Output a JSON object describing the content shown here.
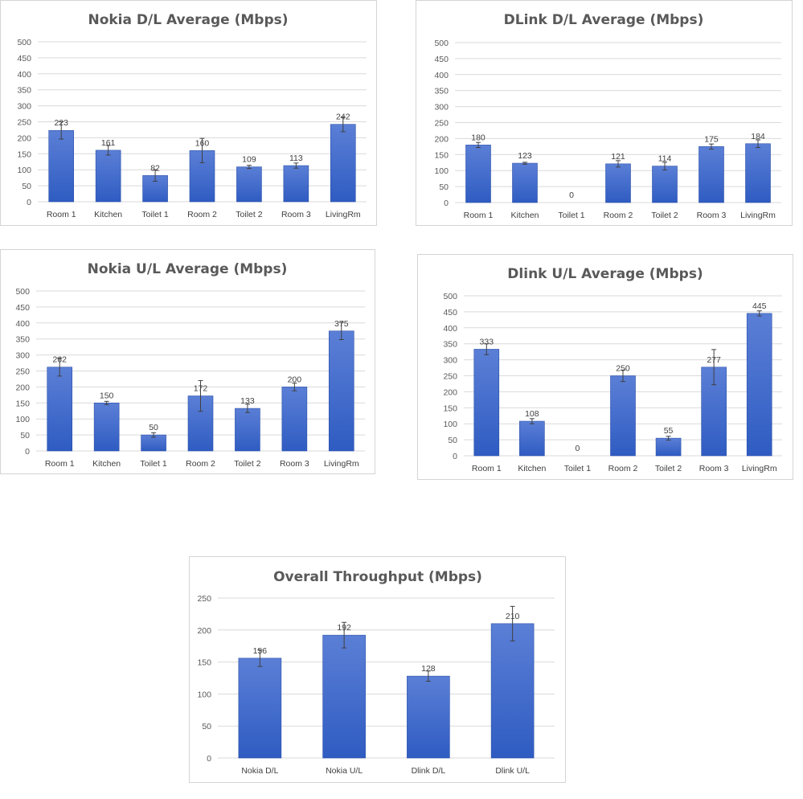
{
  "colors": {
    "bar_top": "#5b7fd6",
    "bar_bottom": "#2f5cc2",
    "bar_edge": "#2a4fa8"
  },
  "chart_data": [
    {
      "type": "bar",
      "title": "Nokia D/L Average (Mbps)",
      "categories": [
        "Room 1",
        "Kitchen",
        "Toilet 1",
        "Room 2",
        "Toilet 2",
        "Room 3",
        "LivingRm"
      ],
      "values": [
        223,
        161,
        82,
        160,
        109,
        113,
        242
      ],
      "error": [
        27,
        15,
        18,
        38,
        5,
        8,
        23
      ],
      "ylim": [
        0,
        500
      ],
      "yticks": [
        0,
        50,
        100,
        150,
        200,
        250,
        300,
        350,
        400,
        450,
        500
      ],
      "grid": true
    },
    {
      "type": "bar",
      "title": "DLink D/L Average (Mbps)",
      "categories": [
        "Room 1",
        "Kitchen",
        "Toilet 1",
        "Room 2",
        "Toilet 2",
        "Room 3",
        "LivingRm"
      ],
      "values": [
        180,
        123,
        0,
        121,
        114,
        175,
        184
      ],
      "error": [
        8,
        3,
        0,
        10,
        12,
        8,
        12
      ],
      "ylim": [
        0,
        500
      ],
      "yticks": [
        0,
        50,
        100,
        150,
        200,
        250,
        300,
        350,
        400,
        450,
        500
      ],
      "grid": true
    },
    {
      "type": "bar",
      "title": "Nokia U/L Average (Mbps)",
      "categories": [
        "Room 1",
        "Kitchen",
        "Toilet 1",
        "Room 2",
        "Toilet 2",
        "Room 3",
        "LivingRm"
      ],
      "values": [
        262,
        150,
        50,
        172,
        133,
        200,
        375
      ],
      "error": [
        28,
        5,
        7,
        48,
        13,
        12,
        27
      ],
      "ylim": [
        0,
        500
      ],
      "yticks": [
        0,
        50,
        100,
        150,
        200,
        250,
        300,
        350,
        400,
        450,
        500
      ],
      "grid": true
    },
    {
      "type": "bar",
      "title": "Dlink U/L Average (Mbps)",
      "categories": [
        "Room 1",
        "Kitchen",
        "Toilet 1",
        "Room 2",
        "Toilet 2",
        "Room 3",
        "LivingRm"
      ],
      "values": [
        333,
        108,
        0,
        250,
        55,
        277,
        445
      ],
      "error": [
        17,
        8,
        0,
        18,
        6,
        55,
        8
      ],
      "ylim": [
        0,
        500
      ],
      "yticks": [
        0,
        50,
        100,
        150,
        200,
        250,
        300,
        350,
        400,
        450,
        500
      ],
      "grid": true
    },
    {
      "type": "bar",
      "title": "Overall Throughput  (Mbps)",
      "categories": [
        "Nokia D/L",
        "Nokia U/L",
        "Dlink D/L",
        "Dlink U/L"
      ],
      "values": [
        156,
        192,
        128,
        210
      ],
      "error": [
        13,
        20,
        8,
        27
      ],
      "ylim": [
        0,
        250
      ],
      "yticks": [
        0,
        50,
        100,
        150,
        200,
        250
      ],
      "grid": true
    }
  ]
}
